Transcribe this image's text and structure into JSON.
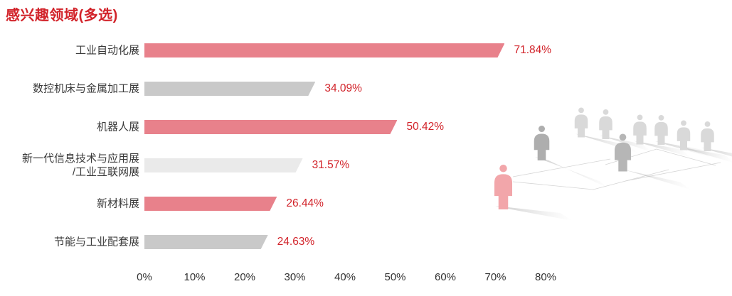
{
  "title": "感兴趣领域(多选)",
  "colors": {
    "accent_red": "#d2232a",
    "bar_pink": "#e8818b",
    "bar_gray": "#c9c9c9",
    "bar_light_gray": "#eaeaea",
    "category_text": "#3a3a3a",
    "axis_text": "#333333",
    "person_highlight": "#f2a6aa",
    "person_dark_gray": "#aeaeae",
    "person_mid_gray": "#b6b6b6",
    "person_light_gray": "#d9d9d9"
  },
  "chart_data": {
    "type": "bar",
    "orientation": "horizontal",
    "title": "感兴趣领域(多选)",
    "categories": [
      "工业自动化展",
      "数控机床与金属加工展",
      "机器人展",
      "新一代信息技术与应用展/工业互联网展",
      "新材料展",
      "节能与工业配套展"
    ],
    "category_lines": [
      [
        "工业自动化展"
      ],
      [
        "数控机床与金属加工展"
      ],
      [
        "机器人展"
      ],
      [
        "新一代信息技术与应用展",
        "/工业互联网展"
      ],
      [
        "新材料展"
      ],
      [
        "节能与工业配套展"
      ]
    ],
    "values": [
      71.84,
      34.09,
      50.42,
      31.57,
      26.44,
      24.63
    ],
    "value_labels": [
      "71.84%",
      "34.09%",
      "50.42%",
      "31.57%",
      "26.44%",
      "24.63%"
    ],
    "bar_color_keys": [
      "bar_pink",
      "bar_gray",
      "bar_pink",
      "bar_light_gray",
      "bar_pink",
      "bar_gray"
    ],
    "x_ticks": [
      "0%",
      "10%",
      "20%",
      "30%",
      "40%",
      "50%",
      "60%",
      "70%",
      "80%"
    ],
    "xlim": [
      0,
      80
    ],
    "grid": false,
    "legend": null,
    "value_label_position": "right-of-bar"
  },
  "decoration": {
    "name": "people-network-graphic",
    "description": "crowd of standing figures, one highlighted in pink, with floor shadows and connecting lines",
    "figure_color_keys": [
      "person_highlight",
      "person_dark_gray",
      "person_light_gray",
      "person_light_gray",
      "person_mid_gray",
      "person_light_gray",
      "person_light_gray",
      "person_light_gray",
      "person_light_gray"
    ]
  }
}
